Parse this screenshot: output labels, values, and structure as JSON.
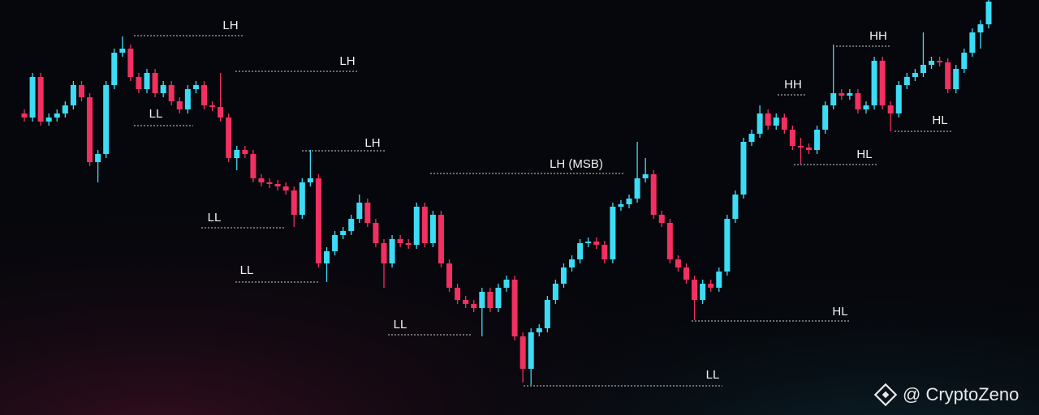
{
  "chart_data": {
    "type": "candlestick",
    "up_color": "#3ddcf6",
    "down_color": "#f23061",
    "ylim": [
      0,
      512
    ],
    "candles": [
      [
        372,
        377,
        362,
        367
      ],
      [
        367,
        422,
        362,
        417
      ],
      [
        417,
        422,
        357,
        362
      ],
      [
        362,
        372,
        357,
        367
      ],
      [
        367,
        377,
        362,
        372
      ],
      [
        372,
        387,
        367,
        382
      ],
      [
        382,
        412,
        377,
        407
      ],
      [
        407,
        412,
        387,
        392
      ],
      [
        392,
        397,
        307,
        312
      ],
      [
        312,
        327,
        287,
        322
      ],
      [
        322,
        412,
        317,
        407
      ],
      [
        407,
        452,
        402,
        447
      ],
      [
        447,
        467,
        442,
        452
      ],
      [
        452,
        457,
        412,
        417
      ],
      [
        417,
        422,
        397,
        402
      ],
      [
        402,
        427,
        397,
        422
      ],
      [
        422,
        427,
        392,
        397
      ],
      [
        397,
        412,
        392,
        407
      ],
      [
        407,
        412,
        382,
        387
      ],
      [
        387,
        392,
        372,
        377
      ],
      [
        377,
        407,
        372,
        402
      ],
      [
        402,
        412,
        397,
        407
      ],
      [
        407,
        412,
        377,
        382
      ],
      [
        382,
        387,
        375,
        380
      ],
      [
        380,
        422,
        362,
        367
      ],
      [
        367,
        372,
        312,
        317
      ],
      [
        317,
        332,
        302,
        327
      ],
      [
        327,
        332,
        317,
        322
      ],
      [
        322,
        327,
        287,
        292
      ],
      [
        292,
        297,
        282,
        287
      ],
      [
        287,
        292,
        280,
        285
      ],
      [
        285,
        290,
        277,
        282
      ],
      [
        282,
        287,
        272,
        277
      ],
      [
        277,
        282,
        232,
        247
      ],
      [
        247,
        292,
        242,
        287
      ],
      [
        287,
        327,
        282,
        292
      ],
      [
        292,
        297,
        182,
        187
      ],
      [
        187,
        207,
        164,
        202
      ],
      [
        202,
        227,
        197,
        222
      ],
      [
        222,
        232,
        217,
        227
      ],
      [
        227,
        247,
        222,
        242
      ],
      [
        242,
        272,
        237,
        262
      ],
      [
        262,
        267,
        232,
        237
      ],
      [
        237,
        242,
        207,
        212
      ],
      [
        212,
        217,
        157,
        187
      ],
      [
        187,
        222,
        182,
        217
      ],
      [
        217,
        222,
        207,
        212
      ],
      [
        212,
        217,
        205,
        210
      ],
      [
        210,
        262,
        205,
        257
      ],
      [
        257,
        262,
        207,
        212
      ],
      [
        212,
        252,
        207,
        247
      ],
      [
        247,
        252,
        182,
        187
      ],
      [
        187,
        192,
        152,
        157
      ],
      [
        157,
        162,
        137,
        142
      ],
      [
        142,
        147,
        132,
        137
      ],
      [
        137,
        142,
        127,
        132
      ],
      [
        132,
        157,
        97,
        152
      ],
      [
        152,
        157,
        127,
        132
      ],
      [
        132,
        162,
        127,
        157
      ],
      [
        157,
        172,
        152,
        167
      ],
      [
        167,
        172,
        92,
        97
      ],
      [
        97,
        102,
        40,
        57
      ],
      [
        57,
        107,
        37,
        102
      ],
      [
        102,
        112,
        97,
        107
      ],
      [
        107,
        147,
        102,
        142
      ],
      [
        142,
        167,
        137,
        162
      ],
      [
        162,
        187,
        157,
        182
      ],
      [
        182,
        197,
        177,
        192
      ],
      [
        192,
        217,
        187,
        212
      ],
      [
        212,
        219,
        207,
        214
      ],
      [
        214,
        219,
        205,
        210
      ],
      [
        210,
        215,
        187,
        192
      ],
      [
        192,
        262,
        187,
        257
      ],
      [
        257,
        265,
        252,
        260
      ],
      [
        260,
        272,
        255,
        267
      ],
      [
        267,
        337,
        262,
        292
      ],
      [
        292,
        317,
        287,
        297
      ],
      [
        297,
        302,
        242,
        247
      ],
      [
        247,
        252,
        232,
        237
      ],
      [
        237,
        242,
        187,
        192
      ],
      [
        192,
        197,
        177,
        182
      ],
      [
        182,
        187,
        162,
        167
      ],
      [
        167,
        172,
        117,
        142
      ],
      [
        142,
        167,
        137,
        162
      ],
      [
        162,
        167,
        152,
        157
      ],
      [
        157,
        182,
        152,
        177
      ],
      [
        177,
        247,
        172,
        242
      ],
      [
        242,
        277,
        237,
        272
      ],
      [
        272,
        342,
        267,
        337
      ],
      [
        337,
        352,
        332,
        347
      ],
      [
        347,
        382,
        342,
        372
      ],
      [
        372,
        377,
        352,
        357
      ],
      [
        357,
        372,
        352,
        367
      ],
      [
        367,
        372,
        347,
        352
      ],
      [
        352,
        357,
        327,
        332
      ],
      [
        332,
        342,
        310,
        330
      ],
      [
        330,
        335,
        322,
        327
      ],
      [
        327,
        357,
        322,
        352
      ],
      [
        352,
        387,
        347,
        382
      ],
      [
        382,
        457,
        377,
        397
      ],
      [
        397,
        402,
        389,
        394
      ],
      [
        394,
        402,
        389,
        397
      ],
      [
        397,
        402,
        372,
        377
      ],
      [
        377,
        387,
        372,
        382
      ],
      [
        382,
        442,
        377,
        437
      ],
      [
        437,
        442,
        377,
        382
      ],
      [
        382,
        387,
        350,
        372
      ],
      [
        372,
        412,
        367,
        407
      ],
      [
        407,
        422,
        402,
        417
      ],
      [
        417,
        427,
        412,
        422
      ],
      [
        422,
        472,
        417,
        432
      ],
      [
        432,
        442,
        427,
        437
      ],
      [
        437,
        442,
        430,
        435
      ],
      [
        435,
        440,
        397,
        402
      ],
      [
        402,
        432,
        397,
        427
      ],
      [
        427,
        452,
        422,
        447
      ],
      [
        447,
        477,
        442,
        472
      ],
      [
        472,
        487,
        452,
        482
      ],
      [
        482,
        512,
        477,
        510
      ]
    ],
    "annotations": [
      "LH",
      "LH",
      "LL",
      "LH",
      "LL",
      "LL",
      "LH (MSB)",
      "LL",
      "LL",
      "HL",
      "HH",
      "HL",
      "HH",
      "HL"
    ],
    "watermark": "@ CryptoZeno"
  }
}
